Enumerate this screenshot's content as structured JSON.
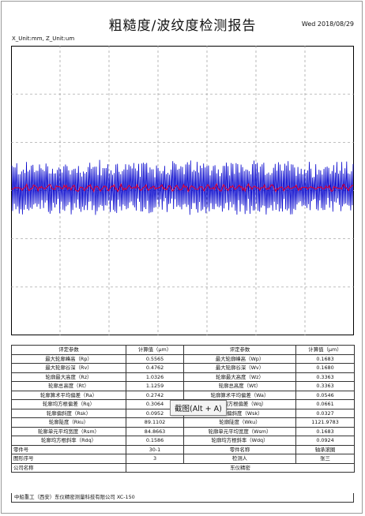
{
  "report": {
    "title": "粗糙度/波纹度检测报告",
    "date": "Wed 2018/08/29",
    "units": "X_Unit:mm, Z_Unit:um"
  },
  "chart_data": {
    "type": "line",
    "grid": true,
    "series": [
      {
        "color": "#0000cc",
        "style": "roughness profile"
      },
      {
        "color": "#dd0033",
        "style": "filtered mean line"
      }
    ]
  },
  "table": {
    "header": [
      "评定参数",
      "计算值（μm）",
      "评定参数",
      "计算值（μm）"
    ],
    "rows": [
      [
        "最大轮廓峰高（Rp）",
        "0.5565",
        "最大轮廓峰高（Wp）",
        "0.1683"
      ],
      [
        "最大轮廓谷深（Rv）",
        "0.4762",
        "最大轮廓谷深（Wv）",
        "0.1680"
      ],
      [
        "轮廓最大高度（Rz）",
        "1.0326",
        "轮廓最大高度（Wz）",
        "0.3363"
      ],
      [
        "轮廓总高度（Rt）",
        "1.1259",
        "轮廓总高度（Wt）",
        "0.3363"
      ],
      [
        "轮廓算术平均偏差（Ra）",
        "0.2742",
        "轮廓算术平均偏差（Wa）",
        "0.0546"
      ],
      [
        "轮廓均方根偏差（Rq）",
        "0.3064",
        "轮廓均方根偏差（Wq）",
        "0.0661"
      ],
      [
        "轮廓偏斜度（Rsk）",
        "0.0952",
        "轮廓偏斜度（Wsk）",
        "0.0327"
      ],
      [
        "轮廓陡度（Rku）",
        "89.1102",
        "轮廓陡度（Wku）",
        "1121.9783"
      ],
      [
        "轮廓单元平均宽度（Rsm）",
        "84.8663",
        "轮廓单元平均宽度（Wsm）",
        "0.1683"
      ],
      [
        "轮廓均方根斜率（Rdq）",
        "0.1586",
        "轮廓均方根斜率（Wdq）",
        "0.0924"
      ]
    ],
    "info": [
      [
        "零件号",
        "30-1",
        "零件名称",
        "轴承滚圈"
      ],
      [
        "图形序号",
        "3",
        "检测人",
        "张三"
      ]
    ],
    "company_label": "公司名称",
    "company_value": "东仪精密"
  },
  "footer": "中船重工（西安）东仪精密测量科技有限公司 XC-150",
  "tooltip": "截图(Alt + A)"
}
